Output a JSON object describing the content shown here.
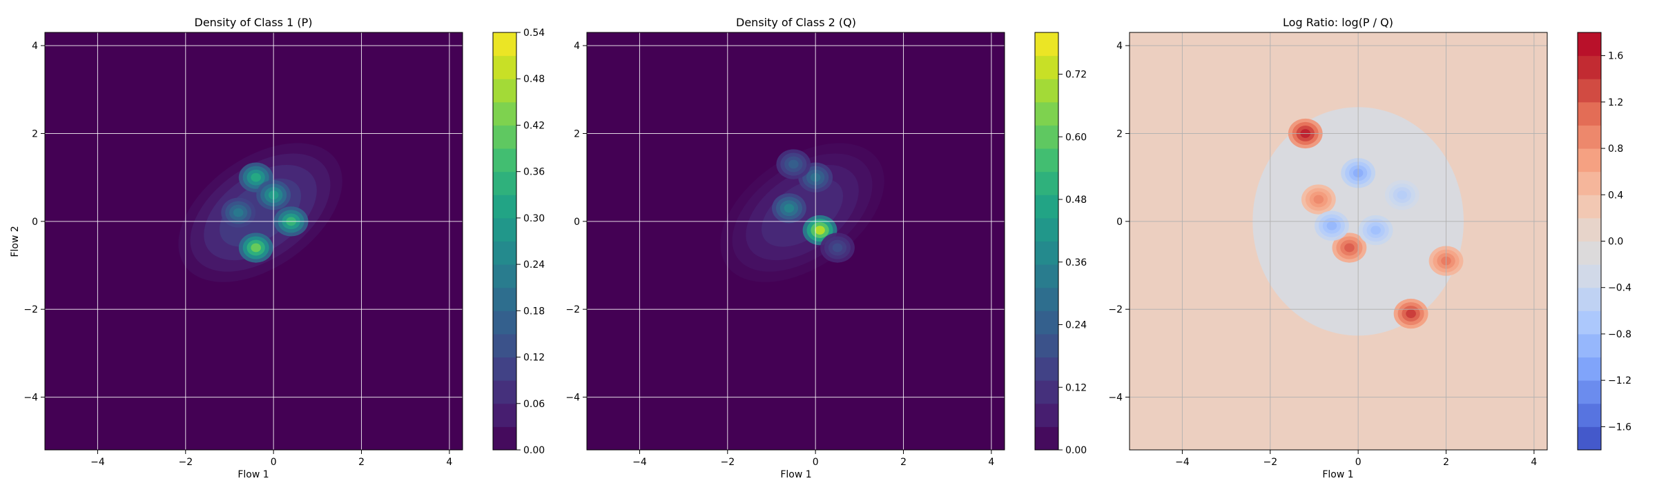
{
  "chart_data": [
    {
      "type": "heatmap",
      "title": "Density of Class 1 (P)",
      "xlabel": "Flow 1",
      "ylabel": "Flow 2",
      "xlim": [
        -5.2,
        4.3
      ],
      "ylim": [
        -5.2,
        4.3
      ],
      "xticks": [
        -4,
        -2,
        0,
        2,
        4
      ],
      "yticks": [
        -4,
        -2,
        0,
        2,
        4
      ],
      "grid": true,
      "colormap": "viridis",
      "colorbar": {
        "range": [
          0.0,
          0.54
        ],
        "ticks": [
          0.0,
          0.06,
          0.12,
          0.18,
          0.24,
          0.3,
          0.36,
          0.42,
          0.48,
          0.54
        ],
        "tick_labels": [
          "0.00",
          "0.06",
          "0.12",
          "0.18",
          "0.24",
          "0.30",
          "0.36",
          "0.42",
          "0.48",
          "0.54"
        ]
      },
      "hotspots": [
        {
          "x": -0.4,
          "y": -0.6,
          "value": 0.42
        },
        {
          "x": 0.4,
          "y": 0.0,
          "value": 0.36
        },
        {
          "x": -0.4,
          "y": 1.0,
          "value": 0.33
        },
        {
          "x": 0.0,
          "y": 0.6,
          "value": 0.3
        },
        {
          "x": -0.8,
          "y": 0.2,
          "value": 0.22
        }
      ]
    },
    {
      "type": "heatmap",
      "title": "Density of Class 2 (Q)",
      "xlabel": "Flow 1",
      "ylabel": "",
      "xlim": [
        -5.2,
        4.3
      ],
      "ylim": [
        -5.2,
        4.3
      ],
      "xticks": [
        -4,
        -2,
        0,
        2,
        4
      ],
      "yticks": [
        -4,
        -2,
        0,
        2,
        4
      ],
      "grid": true,
      "colormap": "viridis",
      "colorbar": {
        "range": [
          0.0,
          0.8
        ],
        "ticks": [
          0.0,
          0.12,
          0.24,
          0.36,
          0.48,
          0.6,
          0.72
        ],
        "tick_labels": [
          "0.00",
          "0.12",
          "0.24",
          "0.36",
          "0.48",
          "0.60",
          "0.72"
        ]
      },
      "hotspots": [
        {
          "x": 0.1,
          "y": -0.2,
          "value": 0.72
        },
        {
          "x": -0.6,
          "y": 0.3,
          "value": 0.36
        },
        {
          "x": 0.0,
          "y": 1.0,
          "value": 0.3
        },
        {
          "x": -0.5,
          "y": 1.3,
          "value": 0.24
        },
        {
          "x": 0.5,
          "y": -0.6,
          "value": 0.18
        }
      ]
    },
    {
      "type": "heatmap",
      "title": "Log Ratio: log(P / Q)",
      "xlabel": "Flow 1",
      "ylabel": "",
      "xlim": [
        -5.2,
        4.3
      ],
      "ylim": [
        -5.2,
        4.3
      ],
      "xticks": [
        -4,
        -2,
        0,
        2,
        4
      ],
      "yticks": [
        -4,
        -2,
        0,
        2,
        4
      ],
      "grid": true,
      "colormap": "coolwarm",
      "colorbar": {
        "range": [
          -1.8,
          1.8
        ],
        "ticks": [
          -1.6,
          -1.2,
          -0.8,
          -0.4,
          0.0,
          0.4,
          0.8,
          1.2,
          1.6
        ],
        "tick_labels": [
          "−1.6",
          "−1.2",
          "−0.8",
          "−0.4",
          "0.0",
          "0.4",
          "0.8",
          "1.2",
          "1.6"
        ]
      },
      "hotspots": [
        {
          "x": -1.2,
          "y": 2.0,
          "value": 1.6
        },
        {
          "x": 1.2,
          "y": -2.1,
          "value": 1.4
        },
        {
          "x": -0.2,
          "y": -0.6,
          "value": 1.2
        },
        {
          "x": 2.0,
          "y": -0.9,
          "value": 1.0
        },
        {
          "x": -0.9,
          "y": 0.5,
          "value": 0.9
        },
        {
          "x": 0.0,
          "y": 1.1,
          "value": -1.0
        },
        {
          "x": 0.4,
          "y": -0.2,
          "value": -0.8
        },
        {
          "x": -0.6,
          "y": -0.1,
          "value": -0.9
        },
        {
          "x": 1.0,
          "y": 0.6,
          "value": -0.6
        }
      ]
    }
  ]
}
